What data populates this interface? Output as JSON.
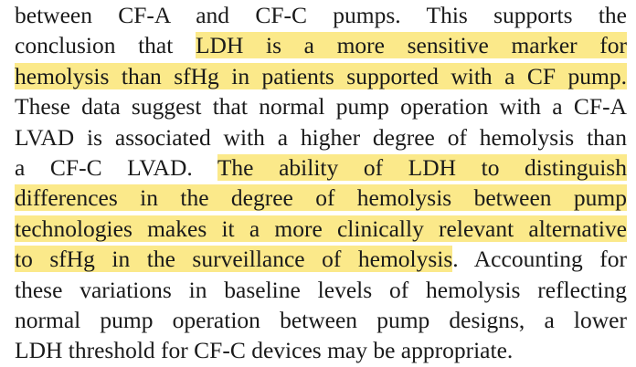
{
  "document": {
    "highlight_color": "#fbe98a",
    "text_color": "#1a1a1a",
    "lines": [
      [
        {
          "text": "between CF-A and CF-C pumps. This supports the",
          "hl": false
        }
      ],
      [
        {
          "text": "conclusion that ",
          "hl": false
        },
        {
          "text": "LDH is a more sensitive marker for",
          "hl": true
        }
      ],
      [
        {
          "text": "hemolysis than sfHg in patients supported with a CF pump.",
          "hl": true
        }
      ],
      [
        {
          "text": "These data suggest that normal pump operation with a CF-A",
          "hl": false
        }
      ],
      [
        {
          "text": "LVAD is associated with a higher degree of hemolysis than",
          "hl": false
        }
      ],
      [
        {
          "text": "a CF-C LVAD. ",
          "hl": false
        },
        {
          "text": "The ability of LDH to distinguish",
          "hl": true
        }
      ],
      [
        {
          "text": "differences in the degree of hemolysis between pump",
          "hl": true
        }
      ],
      [
        {
          "text": "technologies makes it a more clinically relevant alternative",
          "hl": true
        }
      ],
      [
        {
          "text": "to sfHg in the surveillance of hemolysis",
          "hl": true
        },
        {
          "text": ". Accounting for",
          "hl": false
        }
      ],
      [
        {
          "text": "these variations in baseline levels of hemolysis reflecting",
          "hl": false
        }
      ],
      [
        {
          "text": "normal pump operation between pump designs, a lower",
          "hl": false
        }
      ],
      [
        {
          "text": "LDH threshold for CF-C devices may be appropriate.",
          "hl": false
        }
      ]
    ]
  }
}
